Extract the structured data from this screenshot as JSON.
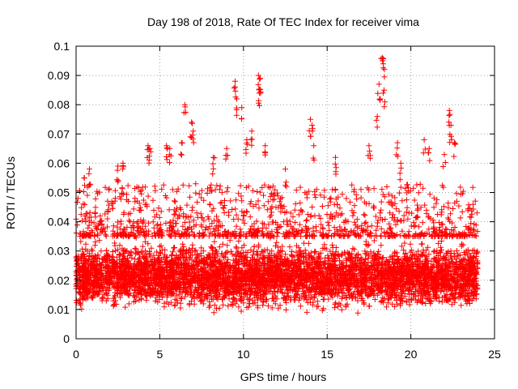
{
  "chart_data": {
    "type": "scatter",
    "title": "Day 198 of 2018, Rate Of TEC Index for receiver vima",
    "xlabel": "GPS time / hours",
    "ylabel": "ROTI / TECUs",
    "xlim": [
      0,
      25
    ],
    "ylim": [
      0,
      0.1
    ],
    "x_ticks": [
      "0",
      "5",
      "10",
      "15",
      "20",
      "25"
    ],
    "y_ticks": [
      "0",
      "0.01",
      "0.02",
      "0.03",
      "0.04",
      "0.05",
      "0.06",
      "0.07",
      "0.08",
      "0.09",
      "0.1"
    ],
    "grid": true,
    "marker": "plus",
    "series": [
      {
        "name": "ROTI",
        "color": "#ff0000",
        "x_range": [
          0,
          24
        ],
        "baseline_ranges": [
          {
            "x": [
              0,
              24
            ],
            "y": [
              0.008,
              0.035
            ]
          }
        ],
        "notable_points": [
          {
            "x": 0.5,
            "y": 0.055
          },
          {
            "x": 0.8,
            "y": 0.058
          },
          {
            "x": 2.5,
            "y": 0.059
          },
          {
            "x": 2.8,
            "y": 0.06
          },
          {
            "x": 4.3,
            "y": 0.066
          },
          {
            "x": 4.4,
            "y": 0.065
          },
          {
            "x": 5.4,
            "y": 0.066
          },
          {
            "x": 5.6,
            "y": 0.065
          },
          {
            "x": 6.3,
            "y": 0.067
          },
          {
            "x": 6.5,
            "y": 0.08
          },
          {
            "x": 6.9,
            "y": 0.074
          },
          {
            "x": 7.0,
            "y": 0.071
          },
          {
            "x": 8.2,
            "y": 0.062
          },
          {
            "x": 9.0,
            "y": 0.065
          },
          {
            "x": 9.5,
            "y": 0.088
          },
          {
            "x": 9.6,
            "y": 0.082
          },
          {
            "x": 9.9,
            "y": 0.079
          },
          {
            "x": 10.2,
            "y": 0.068
          },
          {
            "x": 10.5,
            "y": 0.071
          },
          {
            "x": 10.9,
            "y": 0.09
          },
          {
            "x": 11.0,
            "y": 0.089
          },
          {
            "x": 10.95,
            "y": 0.084
          },
          {
            "x": 11.3,
            "y": 0.066
          },
          {
            "x": 12.5,
            "y": 0.058
          },
          {
            "x": 14.0,
            "y": 0.075
          },
          {
            "x": 14.1,
            "y": 0.073
          },
          {
            "x": 14.2,
            "y": 0.066
          },
          {
            "x": 15.5,
            "y": 0.062
          },
          {
            "x": 17.5,
            "y": 0.066
          },
          {
            "x": 18.0,
            "y": 0.076
          },
          {
            "x": 18.1,
            "y": 0.087
          },
          {
            "x": 18.3,
            "y": 0.096
          },
          {
            "x": 18.35,
            "y": 0.094
          },
          {
            "x": 18.4,
            "y": 0.085
          },
          {
            "x": 19.2,
            "y": 0.067
          },
          {
            "x": 19.4,
            "y": 0.06
          },
          {
            "x": 20.8,
            "y": 0.068
          },
          {
            "x": 21.1,
            "y": 0.065
          },
          {
            "x": 22.0,
            "y": 0.063
          },
          {
            "x": 22.3,
            "y": 0.078
          },
          {
            "x": 22.4,
            "y": 0.073
          },
          {
            "x": 22.6,
            "y": 0.067
          }
        ]
      }
    ]
  }
}
